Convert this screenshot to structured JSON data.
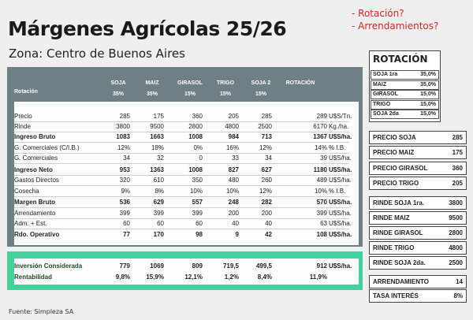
{
  "title": "Márgenes Agrícolas 25/26",
  "subtitle": "Zona: Centro de Buenos Aires",
  "notes": [
    "- Rotación?",
    "- Arrendamientos?"
  ],
  "footer": "Fuente: Simpleza SA",
  "table": {
    "row_header": "Rotación",
    "columns": [
      {
        "name": "SOJA",
        "pct": "35%"
      },
      {
        "name": "MAIZ",
        "pct": "35%"
      },
      {
        "name": "GIRASOL",
        "pct": "15%"
      },
      {
        "name": "TRIGO",
        "pct": "15%"
      },
      {
        "name": "SOJA 2",
        "pct": "15%"
      },
      {
        "name": "ROTACIÓN",
        "pct": ""
      }
    ],
    "rows": [
      {
        "label": "Precio",
        "v": [
          "285",
          "175",
          "360",
          "205",
          "285",
          "289"
        ],
        "unit": "U$S/Tn.",
        "bold": false
      },
      {
        "label": "Rinde",
        "v": [
          "3800",
          "9500",
          "2800",
          "4800",
          "2500",
          "6170"
        ],
        "unit": "Kg./ha.",
        "bold": false
      },
      {
        "label": "Ingreso Bruto",
        "v": [
          "1083",
          "1663",
          "1008",
          "984",
          "713",
          "1367"
        ],
        "unit": "U$S/ha.",
        "bold": true
      },
      {
        "label": "G. Comerciales (C/I.B.)",
        "v": [
          "12%",
          "18%",
          "0%",
          "16%",
          "12%",
          "14%"
        ],
        "unit": "% I.B.",
        "bold": false
      },
      {
        "label": "G. Comerciales",
        "v": [
          "34",
          "32",
          "0",
          "33",
          "34",
          "39"
        ],
        "unit": "U$S/ha.",
        "bold": false
      },
      {
        "label": "Ingreso Neto",
        "v": [
          "953",
          "1363",
          "1008",
          "827",
          "627",
          "1180"
        ],
        "unit": "U$S/ha.",
        "bold": true
      },
      {
        "label": "Gastos Directos",
        "v": [
          "320",
          "610",
          "350",
          "480",
          "260",
          "489"
        ],
        "unit": "U$S/ha.",
        "bold": false
      },
      {
        "label": "Cosecha",
        "v": [
          "9%",
          "8%",
          "10%",
          "10%",
          "12%",
          "10%"
        ],
        "unit": "% I.B.",
        "bold": false
      },
      {
        "label": "Margen Bruto",
        "v": [
          "536",
          "629",
          "557",
          "248",
          "282",
          "570"
        ],
        "unit": "U$S/ha.",
        "bold": true
      },
      {
        "label": "Arrendamiento",
        "v": [
          "399",
          "399",
          "399",
          "200",
          "200",
          "399"
        ],
        "unit": "U$S/ha.",
        "bold": false
      },
      {
        "label": "Adm. + Est.",
        "v": [
          "60",
          "60",
          "60",
          "40",
          "40",
          "63"
        ],
        "unit": "U$S/ha.",
        "bold": false
      },
      {
        "label": "Rdo. Operativo",
        "v": [
          "77",
          "170",
          "98",
          "9",
          "42",
          "108"
        ],
        "unit": "U$S/ha.",
        "bold": true
      }
    ],
    "green_rows": [
      {
        "label": "Inversión Considerada",
        "v": [
          "779",
          "1069",
          "809",
          "719,5",
          "499,5",
          "912"
        ],
        "unit": "U$S/ha."
      },
      {
        "label": "Rentabilidad",
        "v": [
          "9,8%",
          "15,9%",
          "12,1%",
          "1,2%",
          "8,4%",
          "11,9%"
        ],
        "unit": ""
      }
    ]
  },
  "rotacion_box": {
    "title": "ROTACIÓN",
    "items": [
      {
        "label": "SOJA 1ra",
        "value": "35,0%"
      },
      {
        "label": "MAIZ",
        "value": "35,0%"
      },
      {
        "label": "GIRASOL",
        "value": "15,0%"
      },
      {
        "label": "TRIGO",
        "value": "15,0%"
      },
      {
        "label": "SOJA 2da",
        "value": "15,0%"
      }
    ]
  },
  "precios": [
    {
      "label": "PRECIO SOJA",
      "value": "285"
    },
    {
      "label": "PRECIO MAIZ",
      "value": "175"
    },
    {
      "label": "PRECIO GIRASOL",
      "value": "360"
    },
    {
      "label": "PRECIO TRIGO",
      "value": "205"
    }
  ],
  "rindes": [
    {
      "label": "RINDE SOJA 1ra.",
      "value": "3800"
    },
    {
      "label": "RINDE MAIZ",
      "value": "9500"
    },
    {
      "label": "RINDE GIRASOL",
      "value": "2800"
    },
    {
      "label": "RINDE TRIGO",
      "value": "4800"
    },
    {
      "label": "RINDE SOJA 2da.",
      "value": "2500"
    }
  ],
  "otros": [
    {
      "label": "ARRENDAMIENTO",
      "value": "14"
    },
    {
      "label": "TASA INTERÉS",
      "value": "8%"
    }
  ],
  "colors": {
    "header_bg": "#6e7f86",
    "accent_green": "#43d29c",
    "note_red": "#e02020"
  }
}
